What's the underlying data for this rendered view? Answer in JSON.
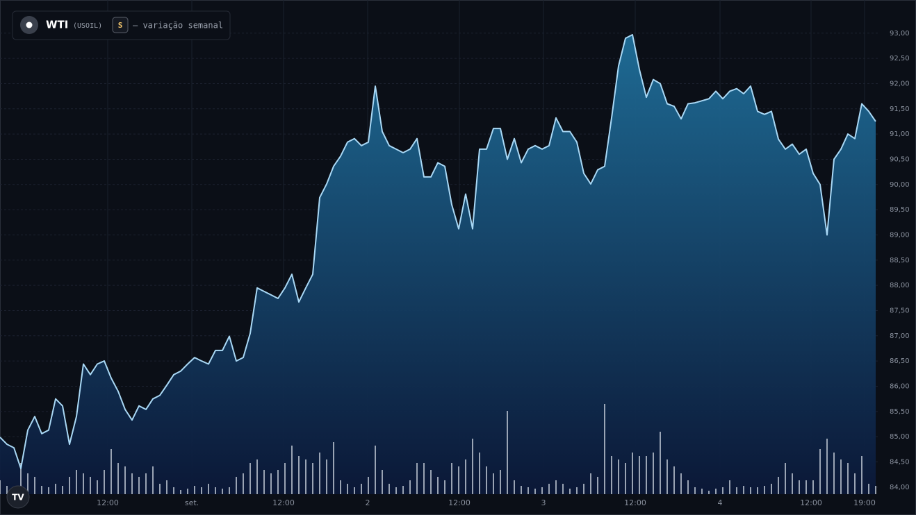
{
  "chart_data": {
    "type": "area",
    "title": "WTI",
    "subtitle": "(USOIL)",
    "badge": "S",
    "note": "— variação semanal",
    "color": "#a9d8f5",
    "values": [
      84.99,
      84.85,
      84.78,
      84.37,
      85.13,
      85.4,
      85.06,
      85.13,
      85.75,
      85.61,
      84.85,
      85.4,
      86.44,
      86.23,
      86.44,
      86.5,
      86.16,
      85.9,
      85.54,
      85.33,
      85.61,
      85.54,
      85.75,
      85.82,
      86.02,
      86.23,
      86.3,
      86.44,
      86.57,
      86.5,
      86.44,
      86.71,
      86.71,
      86.99,
      86.5,
      86.57,
      87.05,
      87.95,
      87.88,
      87.81,
      87.74,
      87.95,
      88.22,
      87.67,
      87.95,
      88.22,
      89.74,
      90.01,
      90.36,
      90.56,
      90.84,
      90.91,
      90.77,
      90.84,
      91.95,
      91.05,
      90.77,
      90.7,
      90.63,
      90.7,
      90.91,
      90.15,
      90.15,
      90.43,
      90.36,
      89.6,
      89.12,
      89.81,
      89.12,
      90.7,
      90.7,
      91.11,
      91.11,
      90.5,
      90.91,
      90.43,
      90.7,
      90.77,
      90.7,
      90.77,
      91.32,
      91.05,
      91.05,
      90.84,
      90.22,
      90.01,
      90.29,
      90.36,
      91.32,
      92.35,
      92.9,
      92.97,
      92.28,
      91.73,
      92.08,
      92.0,
      91.6,
      91.55,
      91.3,
      91.6,
      91.62,
      91.66,
      91.7,
      91.85,
      91.7,
      91.85,
      91.9,
      91.8,
      91.95,
      91.45,
      91.39,
      91.45,
      90.9,
      90.7,
      90.8,
      90.6,
      90.7,
      90.22,
      90.0,
      89.0,
      90.5,
      90.7,
      91.0,
      90.91,
      91.6,
      91.45,
      91.25
    ],
    "volume": {
      "color": "#c9d2dc",
      "values": [
        20,
        12,
        8,
        45,
        30,
        25,
        12,
        10,
        15,
        12,
        25,
        35,
        30,
        25,
        20,
        35,
        65,
        45,
        40,
        30,
        25,
        30,
        40,
        15,
        20,
        10,
        6,
        8,
        12,
        10,
        15,
        10,
        8,
        10,
        25,
        30,
        45,
        50,
        35,
        30,
        35,
        45,
        70,
        55,
        50,
        45,
        60,
        50,
        75,
        20,
        15,
        10,
        15,
        25,
        70,
        35,
        15,
        10,
        12,
        20,
        45,
        45,
        35,
        25,
        20,
        45,
        40,
        50,
        80,
        60,
        40,
        30,
        35,
        120,
        20,
        12,
        10,
        8,
        10,
        15,
        20,
        15,
        8,
        10,
        15,
        30,
        25,
        130,
        55,
        50,
        45,
        60,
        55,
        55,
        60,
        90,
        50,
        40,
        30,
        20,
        10,
        8,
        5,
        8,
        10,
        20,
        10,
        12,
        10,
        10,
        12,
        15,
        25,
        45,
        30,
        20,
        20,
        20,
        65,
        80,
        60,
        50,
        45,
        30,
        55,
        15,
        12
      ]
    },
    "xlim": [
      0,
      126
    ],
    "ylim": [
      83.86,
      93.63
    ],
    "y2lim": [
      0,
      710
    ],
    "grid": true,
    "xticks": [
      {
        "value": 15.5,
        "label": "12:00"
      },
      {
        "value": 27.6,
        "label": "set."
      },
      {
        "value": 40.8,
        "label": "12:00"
      },
      {
        "value": 52.9,
        "label": "2"
      },
      {
        "value": 66.1,
        "label": "12:00"
      },
      {
        "value": 78.2,
        "label": "3"
      },
      {
        "value": 91.4,
        "label": "12:00"
      },
      {
        "value": 103.6,
        "label": "4"
      },
      {
        "value": 116.7,
        "label": "12:00"
      },
      {
        "value": 124.4,
        "label": "19:00"
      }
    ],
    "yticks": [
      {
        "value": 84,
        "label": "84,00"
      },
      {
        "value": 84.5,
        "label": "84,50"
      },
      {
        "value": 85,
        "label": "85,00"
      },
      {
        "value": 85.5,
        "label": "85,50"
      },
      {
        "value": 86,
        "label": "86,00"
      },
      {
        "value": 86.5,
        "label": "86,50"
      },
      {
        "value": 87,
        "label": "87,00"
      },
      {
        "value": 87.5,
        "label": "87,50"
      },
      {
        "value": 88,
        "label": "88,00"
      },
      {
        "value": 88.5,
        "label": "88,50"
      },
      {
        "value": 89,
        "label": "89,00"
      },
      {
        "value": 89.5,
        "label": "89,50"
      },
      {
        "value": 90,
        "label": "90,00"
      },
      {
        "value": 90.5,
        "label": "90,50"
      },
      {
        "value": 91,
        "label": "91,00"
      },
      {
        "value": 91.5,
        "label": "91,50"
      },
      {
        "value": 92,
        "label": "92,00"
      },
      {
        "value": 92.5,
        "label": "92,50"
      },
      {
        "value": 93,
        "label": "93,00"
      }
    ]
  }
}
